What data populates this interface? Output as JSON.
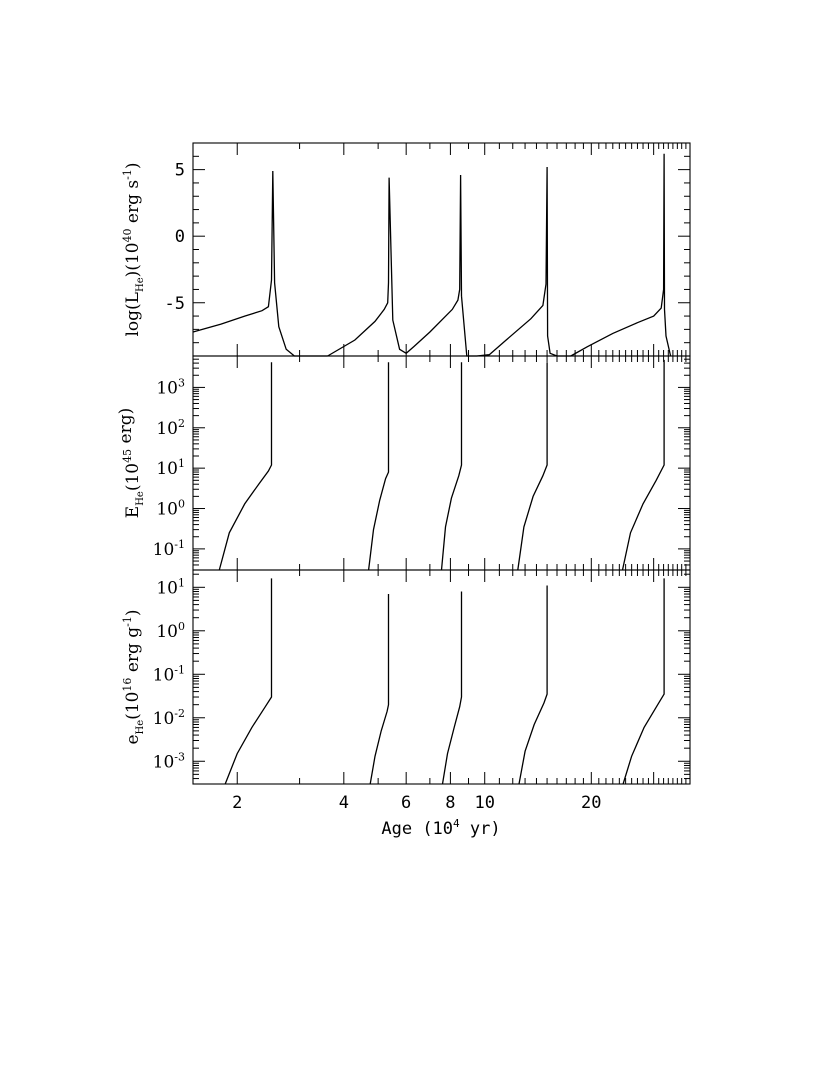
{
  "figure": {
    "xlabel": "Age (10⁴ yr)",
    "xlabel_parts": {
      "pre": "Age (10",
      "exp": "4",
      "post": " yr)"
    },
    "x_tick_labels": [
      "2",
      "4",
      "6",
      "8",
      "10",
      "20"
    ]
  },
  "chart_data": [
    {
      "type": "line",
      "title": "",
      "ylabel": "log(L_He)(10^40 erg s^-1)",
      "ylabel_parts": {
        "pre": "log(L",
        "sub": "He",
        "mid": ")(10",
        "exp": "40",
        "mid2": " erg s",
        "exp2": "-1",
        "post": ")"
      },
      "xscale": "log",
      "xlim": [
        1.5,
        38
      ],
      "ylim": [
        -9,
        7
      ],
      "y_tick_labels": [
        "5",
        "0",
        "-5"
      ],
      "y_ticks": [
        5,
        0,
        -5
      ],
      "series": [
        {
          "x": [
            1.5,
            1.8,
            2.1,
            2.35,
            2.45,
            2.5,
            2.52,
            2.55,
            2.62,
            2.75,
            2.9,
            3.6
          ],
          "y": [
            -7.2,
            -6.6,
            -6.0,
            -5.6,
            -5.3,
            -3.3,
            4.9,
            -3.5,
            -6.8,
            -8.5,
            -9,
            -9
          ]
        },
        {
          "x": [
            3.6,
            4.3,
            4.9,
            5.2,
            5.32,
            5.35,
            5.37,
            5.5,
            5.75,
            6.0,
            6.3,
            7.0,
            8.1,
            8.4,
            8.5,
            8.55,
            8.6
          ],
          "y": [
            -9,
            -7.8,
            -6.4,
            -5.5,
            -5.0,
            -3.5,
            4.4,
            -6.3,
            -8.5,
            -8.8,
            -8.3,
            -7.2,
            -5.5,
            -4.8,
            -4.0,
            4.6,
            -4.5
          ]
        },
        {
          "x": [
            8.6,
            8.9,
            9.5,
            10.3,
            11.5,
            13.5,
            14.6,
            14.9,
            15.0,
            15.05,
            15.3,
            16.0,
            17.5
          ],
          "y": [
            -4.5,
            -9,
            -9,
            -8.9,
            -7.8,
            -6.2,
            -5.2,
            -3.6,
            5.2,
            -7.5,
            -8.8,
            -9,
            -9
          ]
        },
        {
          "x": [
            17.5,
            19.5,
            23.0,
            27.0,
            30.0,
            31.5,
            32.0,
            32.1,
            32.2,
            32.5,
            33.5
          ],
          "y": [
            -9,
            -8.3,
            -7.3,
            -6.5,
            -6.0,
            -5.4,
            -4.0,
            6.2,
            -5.5,
            -7.5,
            -9
          ]
        }
      ]
    },
    {
      "type": "line",
      "title": "",
      "ylabel": "E_He(10^45 erg)",
      "ylabel_parts": {
        "pre": "E",
        "sub": "He",
        "mid": "(10",
        "exp": "45",
        "post": " erg)"
      },
      "xscale": "log",
      "yscale": "log",
      "xlim": [
        1.5,
        38
      ],
      "ylim": [
        0.03,
        6000
      ],
      "y_tick_labels": [
        {
          "base": "10",
          "exp": "3",
          "value": 1000
        },
        {
          "base": "10",
          "exp": "2",
          "value": 100
        },
        {
          "base": "10",
          "exp": "1",
          "value": 10
        },
        {
          "base": "10",
          "exp": "0",
          "value": 1
        },
        {
          "base": "10",
          "exp": "-1",
          "value": 0.1
        }
      ],
      "series": [
        {
          "x": [
            1.78,
            1.9,
            2.1,
            2.3,
            2.45,
            2.5,
            2.5
          ],
          "y": [
            0.03,
            0.25,
            1.3,
            4.0,
            8.5,
            12,
            4200
          ]
        },
        {
          "x": [
            4.7,
            4.85,
            5.05,
            5.25,
            5.35,
            5.35
          ],
          "y": [
            0.03,
            0.3,
            1.6,
            5.5,
            8,
            4200
          ]
        },
        {
          "x": [
            7.55,
            7.75,
            8.05,
            8.45,
            8.6,
            8.6
          ],
          "y": [
            0.03,
            0.35,
            1.8,
            6.5,
            12,
            4200
          ]
        },
        {
          "x": [
            12.4,
            12.9,
            13.7,
            14.6,
            15.0,
            15.0
          ],
          "y": [
            0.03,
            0.35,
            2.0,
            6.5,
            12,
            4200
          ]
        },
        {
          "x": [
            24.5,
            25.8,
            28.0,
            30.5,
            32.1,
            32.1
          ],
          "y": [
            0.03,
            0.25,
            1.3,
            5.0,
            12,
            4800
          ]
        }
      ]
    },
    {
      "type": "line",
      "title": "",
      "ylabel": "e_He(10^16 erg g^-1)",
      "ylabel_parts": {
        "pre": "e",
        "sub": "He",
        "mid": "(10",
        "exp": "16",
        "mid2": " erg g",
        "exp2": "-1",
        "post": ")"
      },
      "xscale": "log",
      "yscale": "log",
      "xlim": [
        1.5,
        38
      ],
      "ylim": [
        0.0003,
        25
      ],
      "y_tick_labels": [
        {
          "base": "10",
          "exp": "1",
          "value": 10
        },
        {
          "base": "10",
          "exp": "0",
          "value": 1
        },
        {
          "base": "10",
          "exp": "-1",
          "value": 0.1
        },
        {
          "base": "10",
          "exp": "-2",
          "value": 0.01
        },
        {
          "base": "10",
          "exp": "-3",
          "value": 0.001
        }
      ],
      "series": [
        {
          "x": [
            1.85,
            2.0,
            2.2,
            2.4,
            2.5,
            2.5
          ],
          "y": [
            0.0003,
            0.0015,
            0.006,
            0.018,
            0.03,
            16
          ]
        },
        {
          "x": [
            4.75,
            4.9,
            5.1,
            5.3,
            5.35,
            5.35
          ],
          "y": [
            0.0003,
            0.0013,
            0.005,
            0.014,
            0.02,
            7
          ]
        },
        {
          "x": [
            7.6,
            7.85,
            8.2,
            8.5,
            8.6,
            8.6
          ],
          "y": [
            0.0003,
            0.0015,
            0.006,
            0.018,
            0.03,
            8
          ]
        },
        {
          "x": [
            12.5,
            13.0,
            13.8,
            14.7,
            15.0,
            15.0
          ],
          "y": [
            0.0003,
            0.0017,
            0.007,
            0.022,
            0.035,
            11
          ]
        },
        {
          "x": [
            24.6,
            26.0,
            28.2,
            30.8,
            32.1,
            32.1
          ],
          "y": [
            0.0003,
            0.0013,
            0.006,
            0.02,
            0.035,
            16
          ]
        }
      ]
    }
  ]
}
